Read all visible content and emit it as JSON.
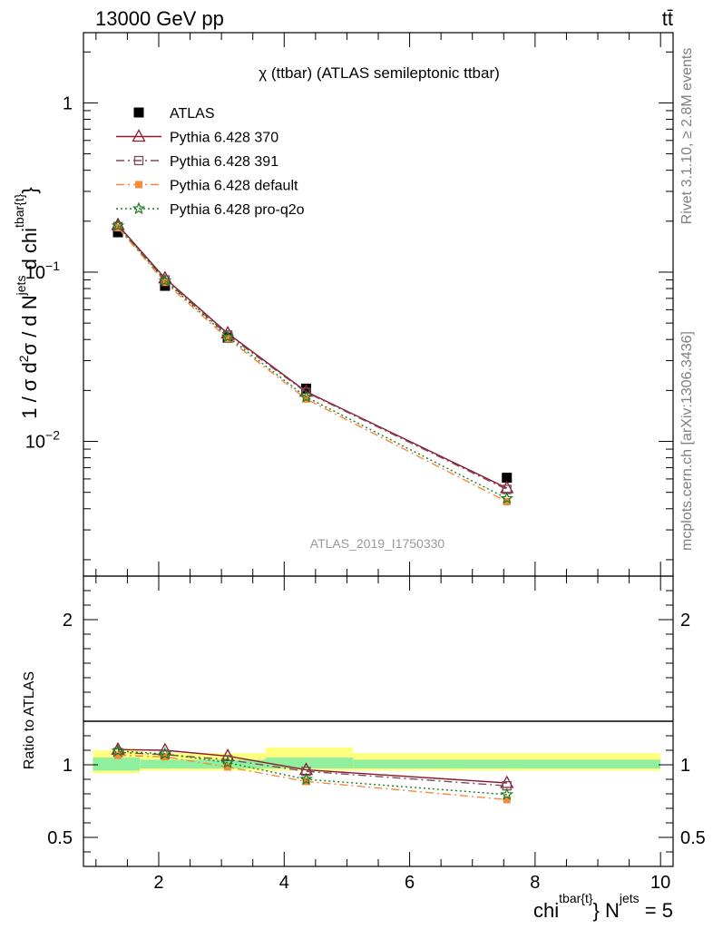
{
  "header": {
    "process": "13000 GeV pp",
    "channel": "tt̄"
  },
  "side_labels": {
    "rivet": "Rivet 3.1.10, ≥ 2.8M events",
    "mcplots": "mcplots.cern.ch [arXiv:1306.3436]"
  },
  "chart_data": [
    {
      "type": "line",
      "panel": "main",
      "title": "χ (ttbar) (ATLAS semileptonic ttbar)",
      "watermark": "ATLAS_2019_I1750330",
      "ylabel": "1 / σ d²σ / d N^jets d chi^tbar{t}",
      "yscale": "log",
      "ylim": [
        0.0016,
        2.6
      ],
      "xlim": [
        0.8,
        10.2
      ],
      "legend_position": "top-left",
      "x": [
        1.35,
        2.1,
        3.1,
        4.35,
        7.55
      ],
      "y_ticks": [
        {
          "value": 1,
          "label": "1"
        },
        {
          "value": 0.1,
          "label": "10",
          "exp": "−1"
        },
        {
          "value": 0.01,
          "label": "10",
          "exp": "−2"
        }
      ],
      "series": [
        {
          "name": "ATLAS",
          "color": "#000000",
          "marker": "filled-square",
          "line": "none",
          "values": [
            0.172,
            0.083,
            0.041,
            0.0205,
            0.0061
          ]
        },
        {
          "name": "Pythia 6.428 370",
          "color": "#8b1a2b",
          "marker": "open-triangle",
          "line": "solid",
          "values": [
            0.19,
            0.092,
            0.0435,
            0.0197,
            0.0053
          ]
        },
        {
          "name": "Pythia 6.428 391",
          "color": "#7b4a5e",
          "marker": "open-square",
          "line": "dashdot",
          "values": [
            0.186,
            0.09,
            0.0425,
            0.0195,
            0.0052
          ]
        },
        {
          "name": "Pythia 6.428 default",
          "color": "#f58a3a",
          "marker": "filled-square",
          "line": "dashdot",
          "values": [
            0.183,
            0.087,
            0.0405,
            0.0178,
            0.0044
          ]
        },
        {
          "name": "Pythia 6.428 pro-q2o",
          "color": "#1e7d1e",
          "marker": "star",
          "line": "dotted",
          "values": [
            0.188,
            0.089,
            0.0415,
            0.0183,
            0.0046
          ]
        }
      ]
    },
    {
      "type": "line",
      "panel": "ratio",
      "ylabel": "Ratio to ATLAS",
      "ylim": [
        0.3,
        2.3
      ],
      "xlim": [
        0.8,
        10.2
      ],
      "xlabel": "chi",
      "xlabel_sup": "tbar{t}",
      "xlabel_mid": "} N",
      "xlabel_sup2": "jets",
      "xlabel_end": " = 5",
      "x_ticks": [
        2,
        4,
        6,
        8,
        10
      ],
      "y_ticks": [
        0.5,
        1,
        2
      ],
      "bands": [
        {
          "x_range": [
            0.95,
            1.7
          ],
          "yellow": [
            0.94,
            1.1
          ],
          "green": [
            0.96,
            1.05
          ]
        },
        {
          "x_range": [
            1.7,
            3.7
          ],
          "yellow": [
            0.96,
            1.08
          ],
          "green": [
            0.975,
            1.035
          ]
        },
        {
          "x_range": [
            3.7,
            5.1
          ],
          "yellow": [
            0.96,
            1.12
          ],
          "green": [
            0.975,
            1.05
          ]
        },
        {
          "x_range": [
            5.1,
            10.0
          ],
          "yellow": [
            0.96,
            1.08
          ],
          "green": [
            0.975,
            1.035
          ]
        }
      ],
      "x": [
        1.35,
        2.1,
        3.1,
        4.35,
        7.55
      ],
      "series": [
        {
          "name": "Pythia 6.428 370",
          "color": "#8b1a2b",
          "marker": "open-triangle",
          "line": "solid",
          "values": [
            1.105,
            1.1,
            1.06,
            0.965,
            0.875
          ]
        },
        {
          "name": "Pythia 6.428 391",
          "color": "#7b4a5e",
          "marker": "open-square",
          "line": "dashdot",
          "values": [
            1.085,
            1.07,
            1.035,
            0.955,
            0.855
          ]
        },
        {
          "name": "Pythia 6.428 default",
          "color": "#f58a3a",
          "marker": "filled-square",
          "line": "dashdot",
          "values": [
            1.065,
            1.055,
            0.985,
            0.885,
            0.76
          ]
        },
        {
          "name": "Pythia 6.428 pro-q2o",
          "color": "#1e7d1e",
          "marker": "star",
          "line": "dotted",
          "values": [
            1.095,
            1.075,
            1.015,
            0.9,
            0.795
          ]
        }
      ]
    }
  ]
}
